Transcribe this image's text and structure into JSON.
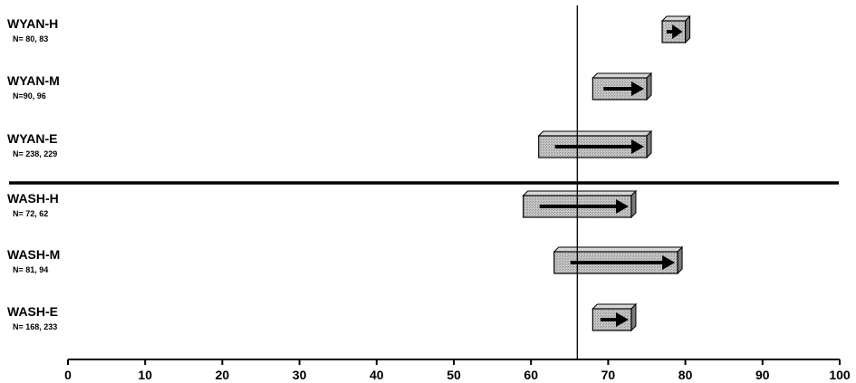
{
  "chart_data": {
    "type": "bar",
    "description_free": true,
    "xlim": [
      0,
      100
    ],
    "xticks": [
      0,
      10,
      20,
      30,
      40,
      50,
      60,
      70,
      80,
      90,
      100
    ],
    "reference_line_x": 66,
    "rows": [
      {
        "label": "WYAN-H",
        "n": "N= 80, 83",
        "from": 77,
        "to": 80
      },
      {
        "label": "WYAN-M",
        "n": "N=90, 96",
        "from": 68,
        "to": 75
      },
      {
        "label": "WYAN-E",
        "n": "N= 238, 229",
        "from": 61,
        "to": 75
      },
      {
        "label": "WASH-H",
        "n": "N= 72, 62",
        "from": 59,
        "to": 73
      },
      {
        "label": "WASH-M",
        "n": "N= 81, 94",
        "from": 63,
        "to": 79
      },
      {
        "label": "WASH-E",
        "n": "N= 168, 233",
        "from": 68,
        "to": 73
      }
    ],
    "group_separator_after_row": 2,
    "grid": false,
    "legend": "none"
  },
  "colors": {
    "bar_fill": "#bdbdbd",
    "bar_top": "#d8d8d8",
    "bar_side": "#7a7a7a",
    "arrow": "#000000",
    "axis": "#000000"
  }
}
